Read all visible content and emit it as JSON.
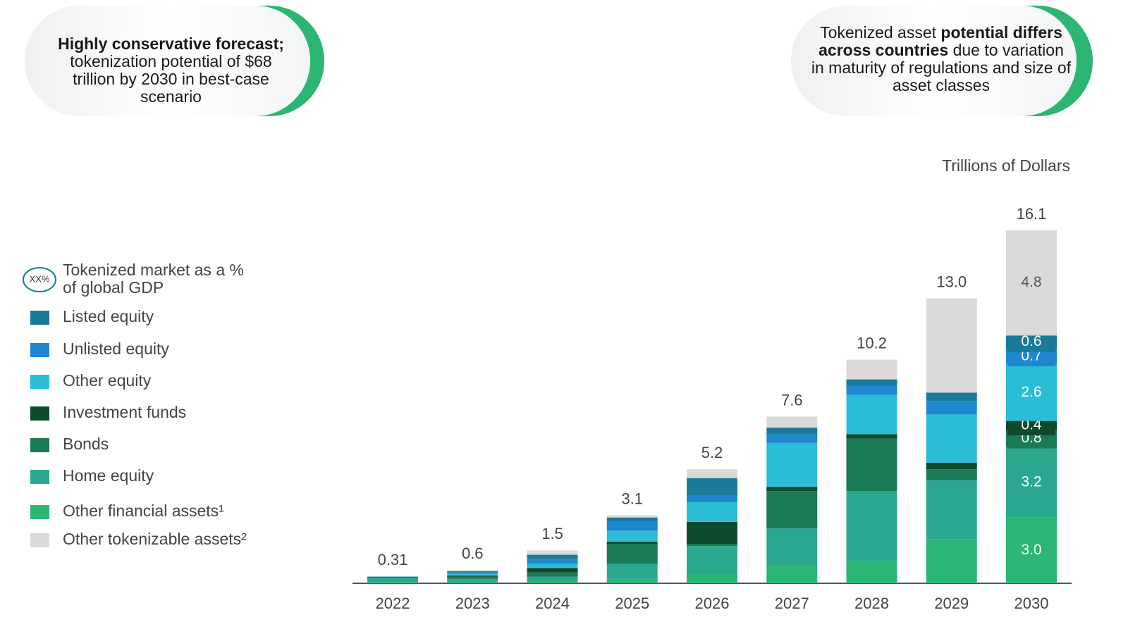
{
  "callouts": [
    [
      {
        "text": "Highly conservative forecast;",
        "bold": true
      },
      {
        "text": " tokenization potential of $68 trillion by 2030 in best-case scenario",
        "bold": false
      }
    ],
    [
      {
        "text": "Tokenized asset ",
        "bold": false
      },
      {
        "text": "potential differs across countries",
        "bold": true
      },
      {
        "text": " due to variation in maturity of regulations and size of asset classes",
        "bold": false
      }
    ]
  ],
  "chart_data": {
    "type": "stacked_bar",
    "unit_label": "Trillions of Dollars",
    "gdp_legend": {
      "icon": "XX%",
      "lines": [
        "Tokenized market as a %",
        "of global GDP"
      ]
    },
    "categories": [
      "2022",
      "2023",
      "2024",
      "2025",
      "2026",
      "2027",
      "2028",
      "2029",
      "2030"
    ],
    "totals": {
      "values": [
        0.31,
        0.6,
        1.5,
        3.1,
        5.2,
        7.6,
        10.2,
        13.0,
        16.1
      ],
      "value_labels": [
        "0.31",
        "0.6",
        "1.5",
        "3.1",
        "5.2",
        "7.6",
        "10.2",
        "13.0",
        "16.1"
      ]
    },
    "series": [
      {
        "name": "Listed equity",
        "color": "#1a7a99",
        "values": [
          0.005,
          0.05,
          0.2,
          0.2,
          0.8,
          0.3,
          0.3,
          0.4,
          0.6
        ],
        "value_labels": [
          null,
          null,
          null,
          null,
          null,
          null,
          null,
          null,
          "0.6"
        ]
      },
      {
        "name": "Unlisted equity",
        "color": "#1e88d0",
        "values": [
          0.005,
          0.05,
          0.2,
          0.4,
          0.3,
          0.4,
          0.4,
          0.6,
          0.7
        ],
        "value_labels": [
          null,
          null,
          null,
          null,
          null,
          null,
          null,
          null,
          "0.7"
        ]
      },
      {
        "name": "Other equity",
        "color": "#2bbcd6",
        "values": [
          0.01,
          0.1,
          0.2,
          0.5,
          0.9,
          2.0,
          1.8,
          2.2,
          2.6
        ],
        "value_labels": [
          null,
          null,
          null,
          null,
          null,
          null,
          null,
          null,
          "2.6"
        ]
      },
      {
        "name": "Investment funds",
        "color": "#0d4a2b",
        "values": [
          0.01,
          0.05,
          0.2,
          0.1,
          1.0,
          0.2,
          0.2,
          0.3,
          0.4
        ],
        "value_labels": [
          null,
          null,
          null,
          null,
          null,
          null,
          null,
          null,
          "0.4"
        ]
      },
      {
        "name": "Bonds",
        "color": "#1a7a55",
        "values": [
          0.04,
          0.1,
          0.2,
          0.9,
          0.1,
          1.7,
          2.4,
          0.5,
          0.8
        ],
        "value_labels": [
          null,
          null,
          null,
          null,
          null,
          null,
          null,
          null,
          "0.8"
        ]
      },
      {
        "name": "Home equity",
        "color": "#2aa88f",
        "values": [
          0.18,
          0.1,
          0.2,
          0.7,
          1.3,
          1.7,
          3.2,
          2.7,
          3.2
        ],
        "value_labels": [
          null,
          null,
          null,
          null,
          null,
          null,
          null,
          null,
          "3.2"
        ]
      },
      {
        "name": "Other financial assets¹",
        "color": "#2bb673",
        "values": [
          0.06,
          0.1,
          0.1,
          0.2,
          0.4,
          0.8,
          1.0,
          2.0,
          3.0
        ],
        "value_labels": [
          null,
          null,
          null,
          null,
          null,
          null,
          null,
          null,
          "3.0"
        ]
      },
      {
        "name": "Other tokenizable assets²",
        "color": "#d9d9d9",
        "values": [
          0,
          0.05,
          0.2,
          0.1,
          0.4,
          0.5,
          0.9,
          4.3,
          4.8
        ],
        "value_labels": [
          null,
          null,
          null,
          null,
          null,
          null,
          null,
          null,
          "4.8"
        ]
      }
    ]
  }
}
